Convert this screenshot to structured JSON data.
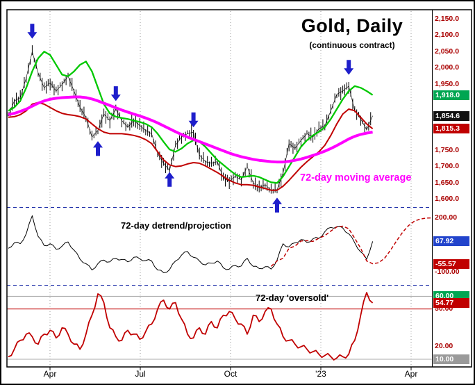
{
  "title": {
    "text": "Gold, Daily",
    "subtitle": "(continuous contract)"
  },
  "annotations": {
    "ma_label": "72-day moving average",
    "detrend_label": "72-day detrend/projection",
    "oversold_label": "72-day 'oversold'"
  },
  "x_axis": {
    "labels": [
      "Apr",
      "Jul",
      "Oct",
      "'23",
      "Apr"
    ]
  },
  "colors": {
    "price": "#000000",
    "green_ma": "#00c800",
    "magenta_ma": "#ff00ff",
    "red_ma": "#c00000",
    "detrend": "#000000",
    "projection": "#c00000",
    "oversold": "#c00000",
    "arrow": "#1e1ecb",
    "separator": "#2233aa",
    "axis_text": "#aa0000"
  },
  "chart_data": [
    {
      "type": "candlestick",
      "title": "Gold, Daily (continuous contract)",
      "ylim": [
        1585,
        2165
      ],
      "series": [
        {
          "name": "close",
          "color": "#000000",
          "values": [
            1855,
            1900,
            1910,
            1970,
            2050,
            1985,
            1940,
            1955,
            1930,
            1950,
            1975,
            1930,
            1880,
            1850,
            1790,
            1810,
            1860,
            1840,
            1875,
            1840,
            1820,
            1840,
            1825,
            1810,
            1800,
            1740,
            1710,
            1688,
            1765,
            1790,
            1800,
            1805,
            1735,
            1715,
            1710,
            1715,
            1665,
            1655,
            1670,
            1660,
            1700,
            1650,
            1635,
            1645,
            1628,
            1630,
            1680,
            1770,
            1755,
            1780,
            1800,
            1790,
            1815,
            1825,
            1870,
            1920,
            1930,
            1945,
            1870,
            1845,
            1812,
            1854.6
          ]
        },
        {
          "name": "short-ma-green",
          "color": "#00c800",
          "values": [
            1870,
            1880,
            1900,
            1940,
            1990,
            2030,
            2050,
            2040,
            2010,
            1980,
            1975,
            1990,
            2010,
            2020,
            1990,
            1940,
            1890,
            1862,
            1852,
            1848,
            1845,
            1840,
            1836,
            1830,
            1820,
            1800,
            1775,
            1752,
            1745,
            1755,
            1770,
            1780,
            1776,
            1760,
            1740,
            1720,
            1705,
            1690,
            1676,
            1668,
            1670,
            1672,
            1668,
            1660,
            1652,
            1650,
            1670,
            1700,
            1730,
            1760,
            1780,
            1795,
            1806,
            1820,
            1845,
            1875,
            1905,
            1930,
            1945,
            1940,
            1930,
            1918
          ]
        },
        {
          "name": "72-day-moving-average",
          "color": "#ff00ff",
          "values": [
            1858,
            1862,
            1868,
            1875,
            1884,
            1893,
            1900,
            1905,
            1908,
            1910,
            1911,
            1912,
            1912,
            1910,
            1906,
            1900,
            1893,
            1886,
            1879,
            1872,
            1866,
            1860,
            1854,
            1848,
            1841,
            1833,
            1824,
            1815,
            1806,
            1798,
            1790,
            1783,
            1776,
            1769,
            1762,
            1755,
            1748,
            1741,
            1735,
            1730,
            1726,
            1722,
            1719,
            1717,
            1715,
            1714,
            1714,
            1716,
            1719,
            1723,
            1728,
            1734,
            1740,
            1747,
            1755,
            1764,
            1774,
            1784,
            1792,
            1798,
            1802,
            1805
          ]
        },
        {
          "name": "red-ma",
          "color": "#c00000",
          "values": [
            1850,
            1852,
            1858,
            1870,
            1890,
            1895,
            1890,
            1880,
            1870,
            1862,
            1858,
            1856,
            1852,
            1845,
            1830,
            1815,
            1805,
            1800,
            1800,
            1800,
            1798,
            1795,
            1790,
            1782,
            1770,
            1745,
            1720,
            1705,
            1700,
            1702,
            1708,
            1712,
            1710,
            1702,
            1692,
            1682,
            1670,
            1658,
            1650,
            1645,
            1645,
            1643,
            1638,
            1633,
            1628,
            1628,
            1640,
            1658,
            1678,
            1698,
            1715,
            1730,
            1745,
            1765,
            1795,
            1830,
            1860,
            1875,
            1870,
            1850,
            1830,
            1815.3
          ]
        }
      ],
      "y_ticks": [
        {
          "label": "2,150.0",
          "value": 2150
        },
        {
          "label": "2,100.0",
          "value": 2100
        },
        {
          "label": "2,050.0",
          "value": 2050
        },
        {
          "label": "2,000.0",
          "value": 2000
        },
        {
          "label": "1,950.0",
          "value": 1950
        },
        {
          "label": "1,750.0",
          "value": 1750
        },
        {
          "label": "1,700.0",
          "value": 1700
        },
        {
          "label": "1,650.0",
          "value": 1650
        },
        {
          "label": "1,600.0",
          "value": 1600
        }
      ],
      "badges": [
        {
          "label": "1,918.0",
          "value": 1918,
          "bg": "#00a651"
        },
        {
          "label": "1,854.6",
          "value": 1854.6,
          "bg": "#111111"
        },
        {
          "label": "1,815.3",
          "value": 1815.3,
          "bg": "#c00000"
        }
      ],
      "signals": [
        {
          "index": 4,
          "price": 2085,
          "dir": "down"
        },
        {
          "index": 18,
          "price": 1895,
          "dir": "down"
        },
        {
          "index": 31,
          "price": 1815,
          "dir": "down"
        },
        {
          "index": 57,
          "price": 1975,
          "dir": "down"
        },
        {
          "index": 15,
          "price": 1782,
          "dir": "up"
        },
        {
          "index": 27,
          "price": 1688,
          "dir": "up"
        },
        {
          "index": 45,
          "price": 1610,
          "dir": "up"
        }
      ]
    },
    {
      "type": "line",
      "title": "72-day detrend/projection",
      "ylim": [
        -165,
        250
      ],
      "series": [
        {
          "name": "detrend",
          "color": "#000000",
          "values": [
            30,
            60,
            55,
            110,
            210,
            95,
            45,
            55,
            25,
            42,
            65,
            20,
            -30,
            -55,
            -90,
            -55,
            -35,
            -45,
            -25,
            -32,
            -45,
            -20,
            -28,
            -38,
            -40,
            -90,
            -105,
            -88,
            -40,
            -8,
            12,
            -20,
            -40,
            -62,
            -52,
            -40,
            -78,
            -85,
            -65,
            -68,
            -25,
            -70,
            -82,
            -72,
            -85,
            -35,
            55,
            38,
            60,
            78,
            62,
            82,
            85,
            122,
            145,
            150,
            142,
            110,
            60,
            10,
            -30,
            67.92
          ]
        },
        {
          "name": "projection",
          "color": "#c00000",
          "dashed": true,
          "points": [
            [
              44,
              -70
            ],
            [
              45,
              -40
            ],
            [
              46,
              -25
            ],
            [
              47,
              30
            ],
            [
              48,
              42
            ],
            [
              49,
              70
            ],
            [
              50,
              72
            ],
            [
              51,
              68
            ],
            [
              52,
              85
            ],
            [
              53,
              100
            ],
            [
              54,
              125
            ],
            [
              55,
              148
            ],
            [
              56,
              152
            ],
            [
              57,
              138
            ],
            [
              58,
              85
            ],
            [
              59,
              30
            ],
            [
              60,
              -40
            ],
            [
              61,
              -55.57
            ],
            [
              62,
              -50
            ],
            [
              63,
              -25
            ],
            [
              64,
              20
            ],
            [
              65,
              70
            ],
            [
              66,
              118
            ],
            [
              67,
              155
            ],
            [
              68,
              180
            ],
            [
              69,
              192
            ],
            [
              70,
              197
            ],
            [
              71,
              198
            ]
          ]
        }
      ],
      "y_ticks": [
        {
          "label": "200.00",
          "value": 200
        },
        {
          "label": "-100.00",
          "value": -100
        }
      ],
      "badges": [
        {
          "label": "67.92",
          "value": 67.92,
          "bg": "#2244cc"
        },
        {
          "label": "-55.57",
          "value": -55.57,
          "bg": "#c00000"
        }
      ]
    },
    {
      "type": "line",
      "title": "72-day 'oversold'",
      "ylim": [
        5,
        68
      ],
      "series": [
        {
          "name": "oversold",
          "color": "#c00000",
          "values": [
            12,
            18,
            25,
            30,
            28,
            22,
            30,
            33,
            27,
            35,
            30,
            22,
            18,
            30,
            45,
            62,
            55,
            35,
            28,
            25,
            33,
            30,
            26,
            32,
            38,
            50,
            57,
            50,
            55,
            42,
            30,
            27,
            35,
            30,
            40,
            35,
            45,
            48,
            42,
            38,
            30,
            45,
            40,
            48,
            50,
            38,
            28,
            25,
            22,
            20,
            18,
            16,
            14,
            13,
            12,
            11,
            12,
            14,
            25,
            45,
            63,
            54.77
          ]
        }
      ],
      "hlines": [
        {
          "value": 60,
          "color": "#b0b0b0"
        },
        {
          "value": 50,
          "color": "#c00000"
        },
        {
          "value": 10,
          "color": "#b0b0b0"
        }
      ],
      "y_ticks": [
        {
          "label": "50.00",
          "value": 50
        },
        {
          "label": "20.00",
          "value": 20
        }
      ],
      "badges": [
        {
          "label": "60.00",
          "value": 60,
          "bg": "#00a651"
        },
        {
          "label": "54.77",
          "value": 54.77,
          "bg": "#c00000"
        },
        {
          "label": "10.00",
          "value": 10,
          "bg": "#9a9a9a"
        }
      ]
    }
  ]
}
